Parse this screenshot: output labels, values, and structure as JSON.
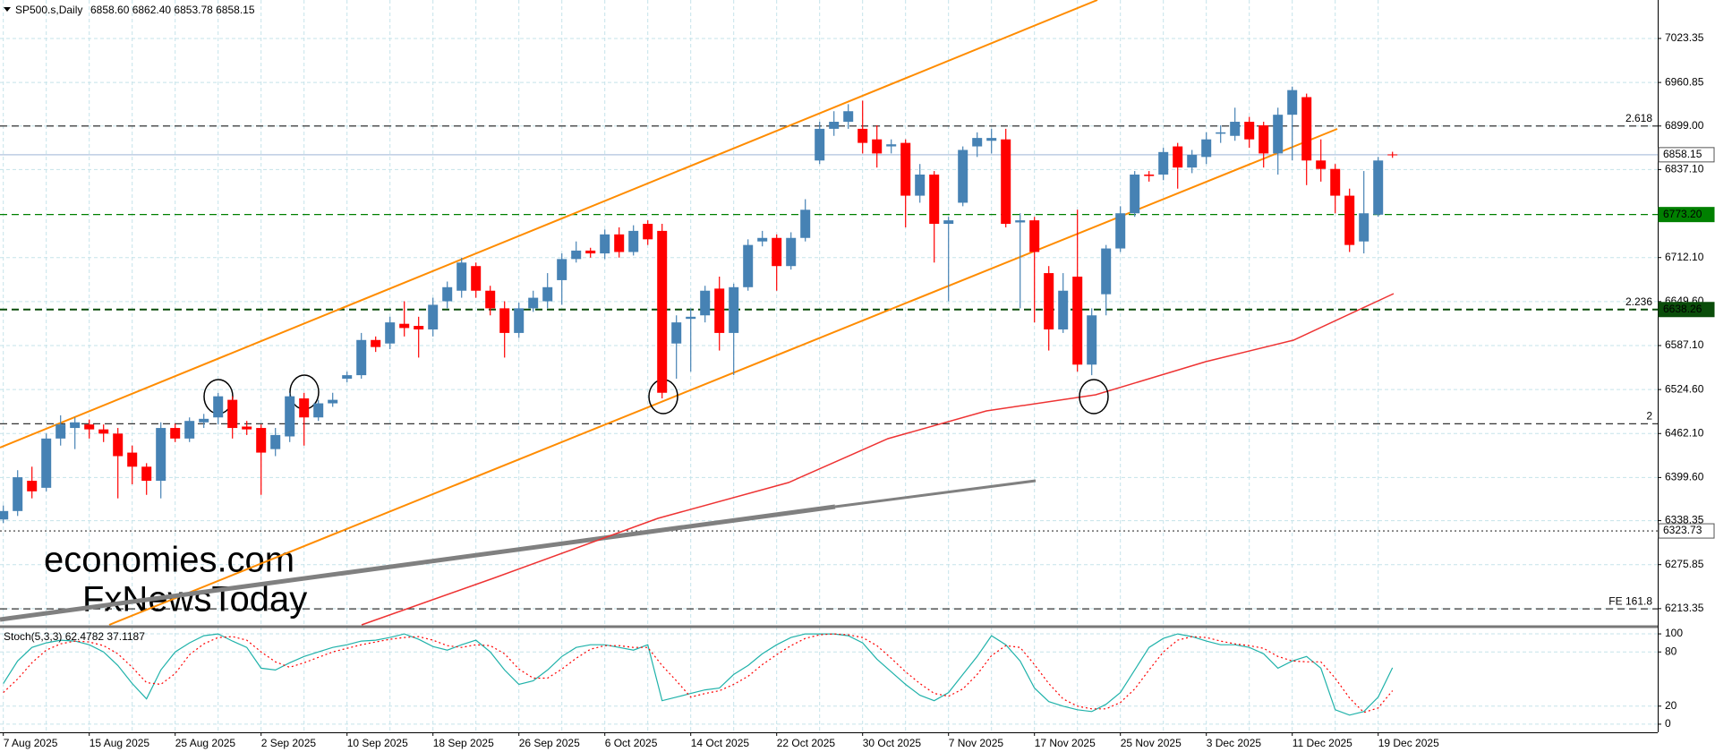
{
  "chart_data": [
    {
      "type": "candlestick",
      "title": "SP500.s,Daily",
      "quote": "6858.60 6862.40 6853.78 6858.15",
      "categories": [
        "7 Aug 2025",
        null,
        null,
        null,
        null,
        null,
        "15 Aug 2025",
        null,
        null,
        null,
        null,
        null,
        "25 Aug 2025",
        null,
        null,
        null,
        null,
        null,
        "2 Sep 2025",
        null,
        null,
        null,
        null,
        null,
        "10 Sep 2025",
        null,
        null,
        null,
        null,
        null,
        "18 Sep 2025",
        null,
        null,
        null,
        null,
        null,
        "26 Sep 2025",
        null,
        null,
        null,
        null,
        null,
        "6 Oct 2025",
        null,
        null,
        null,
        null,
        null,
        "14 Oct 2025",
        null,
        null,
        null,
        null,
        null,
        "22 Oct 2025",
        null,
        null,
        null,
        null,
        null,
        "30 Oct 2025",
        null,
        null,
        null,
        null,
        null,
        "7 Nov 2025",
        null,
        null,
        null,
        null,
        null,
        "17 Nov 2025",
        null,
        null,
        null,
        null,
        null,
        "25 Nov 2025",
        null,
        null,
        null,
        null,
        null,
        "3 Dec 2025",
        null,
        null,
        null,
        null,
        null,
        "11 Dec 2025",
        null,
        null,
        null,
        null,
        null,
        "19 Dec 2025",
        null
      ],
      "open": [
        6340,
        6352,
        6395,
        6385,
        6455,
        6470,
        6475,
        6468,
        6462,
        6435,
        6415,
        6395,
        6470,
        6455,
        6478,
        6485,
        6510,
        6472,
        6470,
        6440,
        6458,
        6512,
        6485,
        6505,
        6540,
        6545,
        6595,
        6590,
        6618,
        6615,
        6610,
        6650,
        6665,
        6700,
        6665,
        6640,
        6605,
        6640,
        6650,
        6680,
        6710,
        6722,
        6718,
        6745,
        6720,
        6760,
        6750,
        6590,
        6625,
        6630,
        6668,
        6605,
        6670,
        6735,
        6740,
        6700,
        6740,
        6850,
        6895,
        6905,
        6895,
        6880,
        6870,
        6875,
        6800,
        6830,
        6760,
        6790,
        6870,
        6878,
        6880,
        6762,
        6765,
        6690,
        6610,
        6685,
        6560,
        6660,
        6725,
        6775,
        6830,
        6830,
        6870,
        6840,
        6855,
        6888,
        6885,
        6905,
        6900,
        6860,
        6915,
        6940,
        6850,
        6838,
        6800,
        6735,
        6773,
        6858.6
      ],
      "high": [
        6360,
        6410,
        6415,
        6462,
        6488,
        6485,
        6482,
        6475,
        6470,
        6445,
        6420,
        6478,
        6476,
        6485,
        6490,
        6520,
        6515,
        6480,
        6475,
        6470,
        6520,
        6520,
        6510,
        6520,
        6550,
        6605,
        6600,
        6628,
        6650,
        6628,
        6655,
        6678,
        6712,
        6705,
        6672,
        6650,
        6648,
        6665,
        6690,
        6718,
        6735,
        6726,
        6752,
        6755,
        6758,
        6765,
        6760,
        6630,
        6640,
        6672,
        6685,
        6675,
        6738,
        6750,
        6745,
        6748,
        6795,
        6905,
        6920,
        6930,
        6935,
        6900,
        6880,
        6880,
        6845,
        6835,
        6770,
        6870,
        6890,
        6895,
        6895,
        6775,
        6770,
        6700,
        6690,
        6780,
        6640,
        6730,
        6785,
        6835,
        6835,
        6868,
        6875,
        6865,
        6890,
        6900,
        6925,
        6912,
        6905,
        6925,
        6955,
        6945,
        6880,
        6845,
        6810,
        6835,
        6855,
        6862.4
      ],
      "low": [
        6335,
        6345,
        6370,
        6380,
        6445,
        6440,
        6455,
        6450,
        6370,
        6390,
        6375,
        6370,
        6450,
        6450,
        6470,
        6475,
        6455,
        6460,
        6375,
        6430,
        6450,
        6445,
        6480,
        6500,
        6535,
        6540,
        6578,
        6582,
        6600,
        6570,
        6600,
        6640,
        6655,
        6655,
        6630,
        6570,
        6598,
        6635,
        6640,
        6645,
        6705,
        6712,
        6710,
        6712,
        6715,
        6730,
        6512,
        6540,
        6550,
        6620,
        6580,
        6545,
        6665,
        6728,
        6665,
        6695,
        6735,
        6845,
        6885,
        6895,
        6860,
        6840,
        6860,
        6755,
        6790,
        6705,
        6650,
        6785,
        6855,
        6860,
        6755,
        6640,
        6620,
        6580,
        6605,
        6550,
        6545,
        6630,
        6720,
        6770,
        6820,
        6822,
        6810,
        6832,
        6845,
        6875,
        6878,
        6868,
        6840,
        6830,
        6850,
        6815,
        6820,
        6775,
        6720,
        6718,
        6770,
        6853.78
      ],
      "close": [
        6352,
        6400,
        6380,
        6455,
        6475,
        6478,
        6468,
        6462,
        6430,
        6415,
        6395,
        6470,
        6455,
        6480,
        6483,
        6515,
        6470,
        6468,
        6435,
        6460,
        6515,
        6485,
        6505,
        6510,
        6545,
        6595,
        6585,
        6620,
        6612,
        6610,
        6645,
        6670,
        6705,
        6665,
        6640,
        6605,
        6640,
        6655,
        6670,
        6710,
        6722,
        6718,
        6745,
        6720,
        6750,
        6738,
        6520,
        6620,
        6628,
        6665,
        6605,
        6670,
        6730,
        6740,
        6700,
        6740,
        6780,
        6895,
        6905,
        6920,
        6875,
        6860,
        6873,
        6800,
        6830,
        6760,
        6765,
        6865,
        6882,
        6882,
        6760,
        6765,
        6720,
        6610,
        6665,
        6560,
        6630,
        6725,
        6775,
        6830,
        6828,
        6862,
        6840,
        6858,
        6880,
        6890,
        6905,
        6880,
        6860,
        6915,
        6950,
        6850,
        6838,
        6800,
        6730,
        6775,
        6850,
        6858.15
      ],
      "up_color": "#4682b4",
      "down_color": "#ff0000",
      "ylim": [
        6189,
        7078
      ],
      "yticks": [
        7023.35,
        6960.85,
        {
          "value": 6899,
          "label": "6899.00"
        },
        {
          "value": 6837.1,
          "label": "6837.10"
        },
        {
          "value": 6712.1,
          "label": "6712.10"
        },
        {
          "value": 6649.6,
          "label": "6649.60"
        },
        {
          "value": 6587.1,
          "label": "6587.10"
        },
        {
          "value": 6524.6,
          "label": "6524.60"
        },
        {
          "value": 6462.1,
          "label": "6462.10"
        },
        {
          "value": 6399.6,
          "label": "6399.60"
        },
        6338.35,
        6275.85,
        6213.35
      ],
      "grid": true,
      "levels": [
        {
          "value": 6899,
          "label": "2.618",
          "color": "#333333",
          "style": "dashed"
        },
        {
          "value": 6858.15,
          "tag": "6858.15",
          "color": "#b0c4de",
          "style": "solid"
        },
        {
          "value": 6773.2,
          "tag": "6773.20",
          "color": "#008000",
          "style": "dashed"
        },
        {
          "value": 6638.26,
          "label": "2.236",
          "tag": "6638.26",
          "color": "#0a4d0a",
          "style": "dashed"
        },
        {
          "value": 6476,
          "label": "2",
          "color": "#333333",
          "style": "dashed"
        },
        {
          "value": 6323.73,
          "tag": "6323.73",
          "color": "#333333",
          "style": "dotted"
        },
        {
          "value": 6213,
          "label": "FE 161.8",
          "color": "#333333",
          "style": "dashed"
        }
      ],
      "watermark": [
        "economies.com",
        "FxNewsToday"
      ]
    },
    {
      "type": "line",
      "title": "Stoch(5,3,3) 62.4782 37.1187",
      "series": [
        {
          "color": "#20b2aa",
          "style": "solid",
          "values": [
            45,
            70,
            85,
            90,
            93,
            92,
            88,
            80,
            65,
            45,
            28,
            60,
            80,
            90,
            98,
            100,
            92,
            85,
            62,
            60,
            68,
            75,
            80,
            85,
            88,
            92,
            93,
            96,
            100,
            94,
            86,
            82,
            88,
            93,
            80,
            60,
            44,
            48,
            60,
            75,
            85,
            88,
            88,
            85,
            82,
            88,
            26,
            30,
            34,
            38,
            40,
            55,
            65,
            78,
            88,
            96,
            100,
            100,
            100,
            98,
            90,
            72,
            58,
            44,
            32,
            26,
            35,
            55,
            75,
            98,
            88,
            70,
            40,
            25,
            20,
            16,
            14,
            22,
            35,
            60,
            85,
            95,
            100,
            97,
            92,
            88,
            88,
            85,
            78,
            62,
            70,
            75,
            62,
            16,
            10,
            14,
            30,
            62.4782
          ]
        },
        {
          "color": "#ff0000",
          "style": "dotted",
          "values": [
            35,
            50,
            68,
            82,
            89,
            92,
            91,
            87,
            78,
            63,
            46,
            44,
            56,
            77,
            89,
            96,
            97,
            93,
            80,
            69,
            63,
            68,
            74,
            80,
            84,
            88,
            91,
            94,
            96,
            97,
            93,
            87,
            85,
            88,
            87,
            78,
            61,
            51,
            51,
            61,
            73,
            83,
            87,
            87,
            85,
            85,
            65,
            48,
            30,
            34,
            37,
            44,
            53,
            66,
            77,
            87,
            95,
            99,
            100,
            99,
            96,
            87,
            73,
            58,
            45,
            34,
            31,
            39,
            55,
            76,
            87,
            85,
            66,
            45,
            28,
            20,
            17,
            17,
            24,
            39,
            60,
            80,
            93,
            97,
            96,
            92,
            89,
            87,
            84,
            75,
            70,
            69,
            69,
            51,
            29,
            13,
            18,
            37.1187
          ]
        }
      ],
      "ylim": [
        -9,
        107
      ],
      "yticks": [
        0,
        20,
        80,
        100
      ]
    }
  ]
}
